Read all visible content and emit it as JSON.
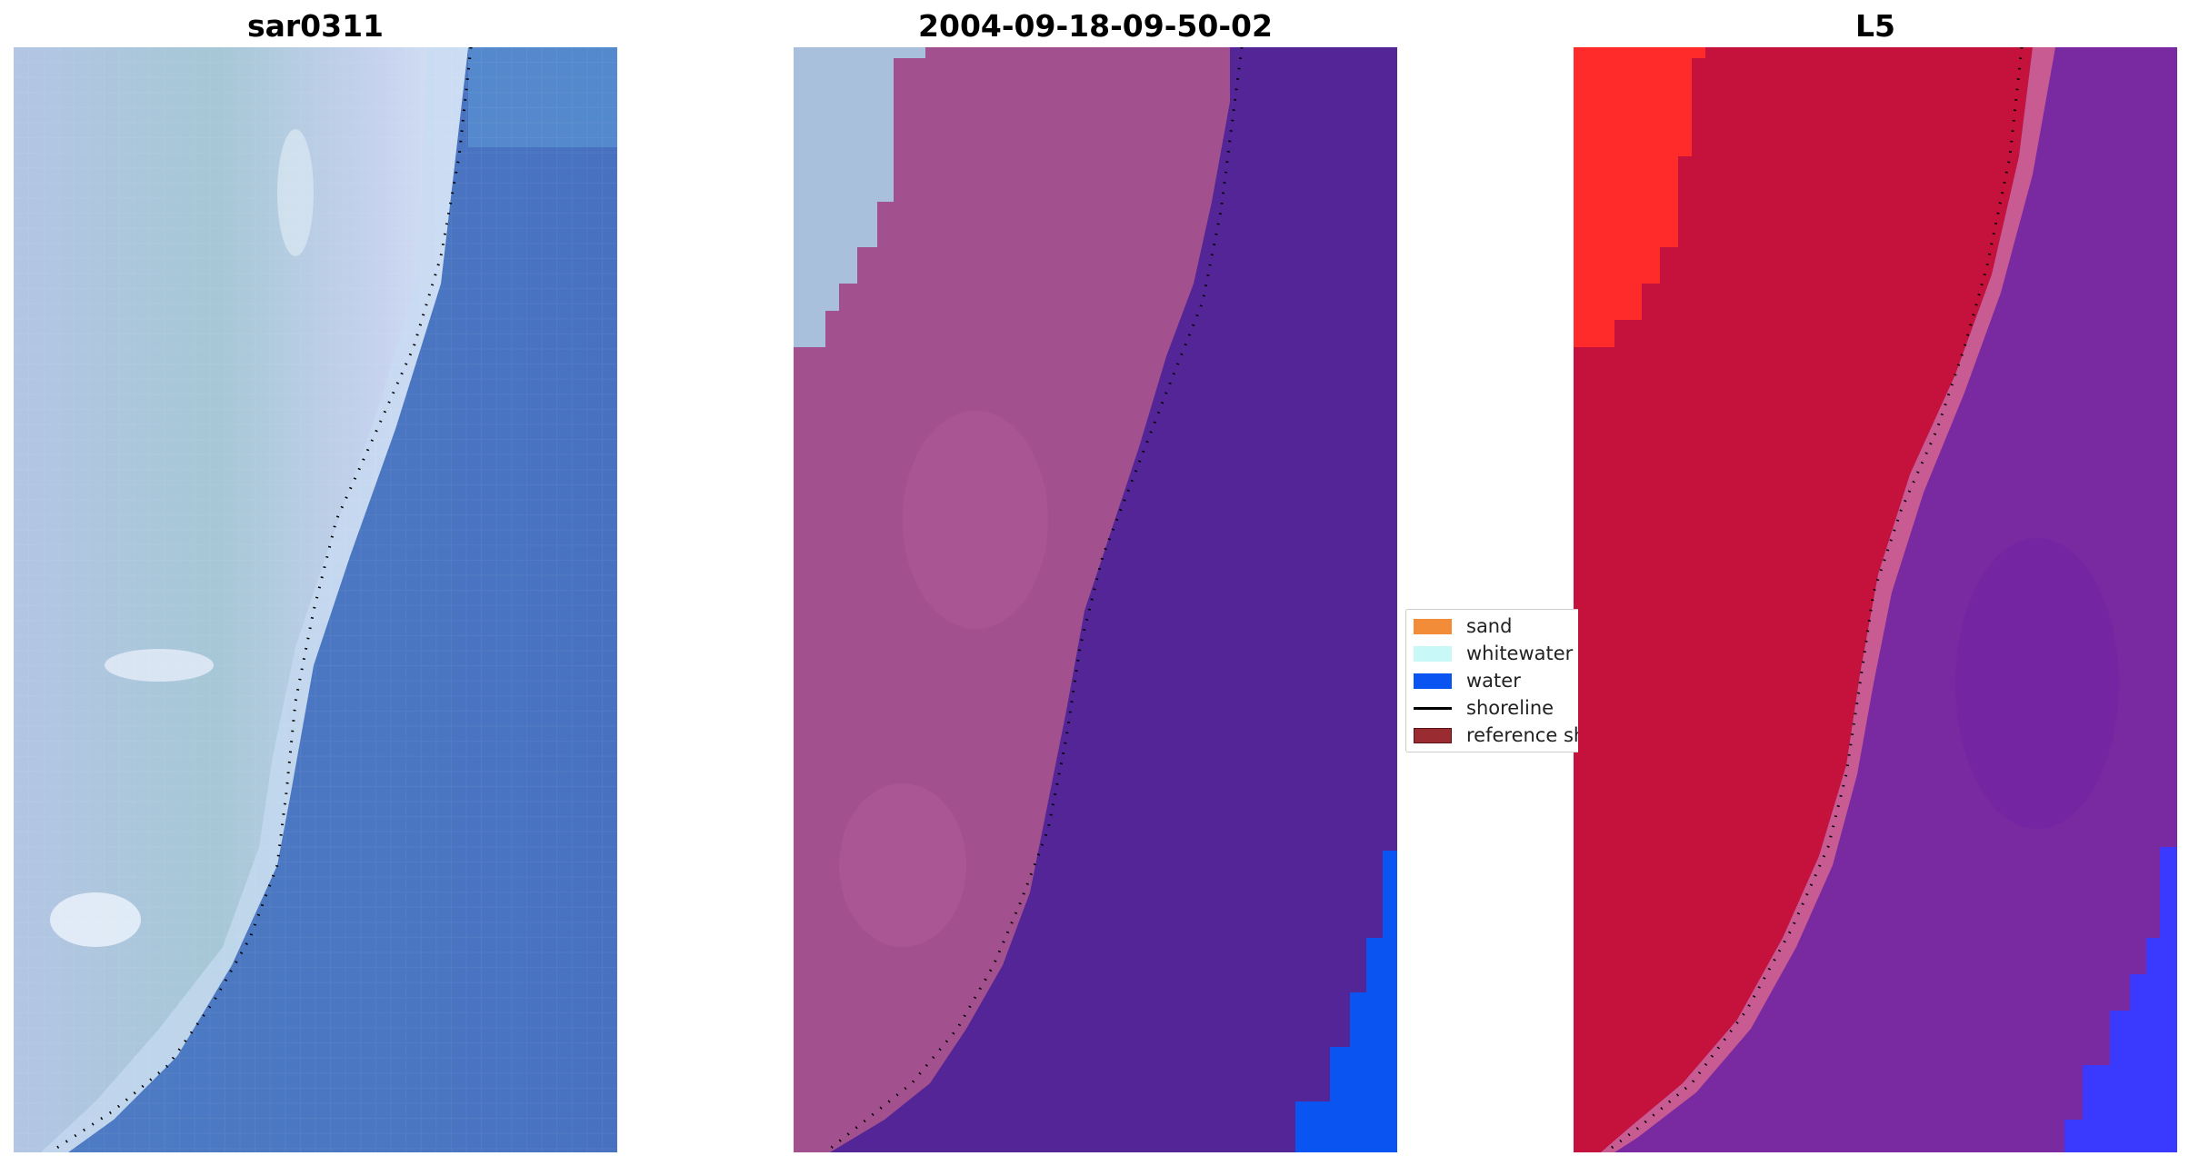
{
  "panels": [
    {
      "title": "sar0311"
    },
    {
      "title": "2004-09-18-09-50-02"
    },
    {
      "title": "L5"
    }
  ],
  "legend": {
    "items": [
      {
        "label": "sand",
        "kind": "patch",
        "color": "#f28c38"
      },
      {
        "label": "whitewater",
        "kind": "patch",
        "color": "#c8f8f8"
      },
      {
        "label": "water",
        "kind": "patch",
        "color": "#0a55f2"
      },
      {
        "label": "shoreline",
        "kind": "line",
        "color": "#000000"
      },
      {
        "label": "reference shoreline",
        "kind": "patch",
        "color": "#9a2c31"
      }
    ]
  },
  "colors": {
    "rgb_land": "#a8c0dc",
    "rgb_water": "#4a78c2",
    "class_whitewater": "#a8c0dc",
    "class_land": "#a3518e",
    "class_water": "#542596",
    "class_water_blue": "#0a55f2",
    "index_land": "#c4123c",
    "index_land_bright": "#ff2a2a",
    "index_water": "#7a2aa0",
    "index_water_blue": "#3a3aff",
    "shoreline": "#000000"
  }
}
